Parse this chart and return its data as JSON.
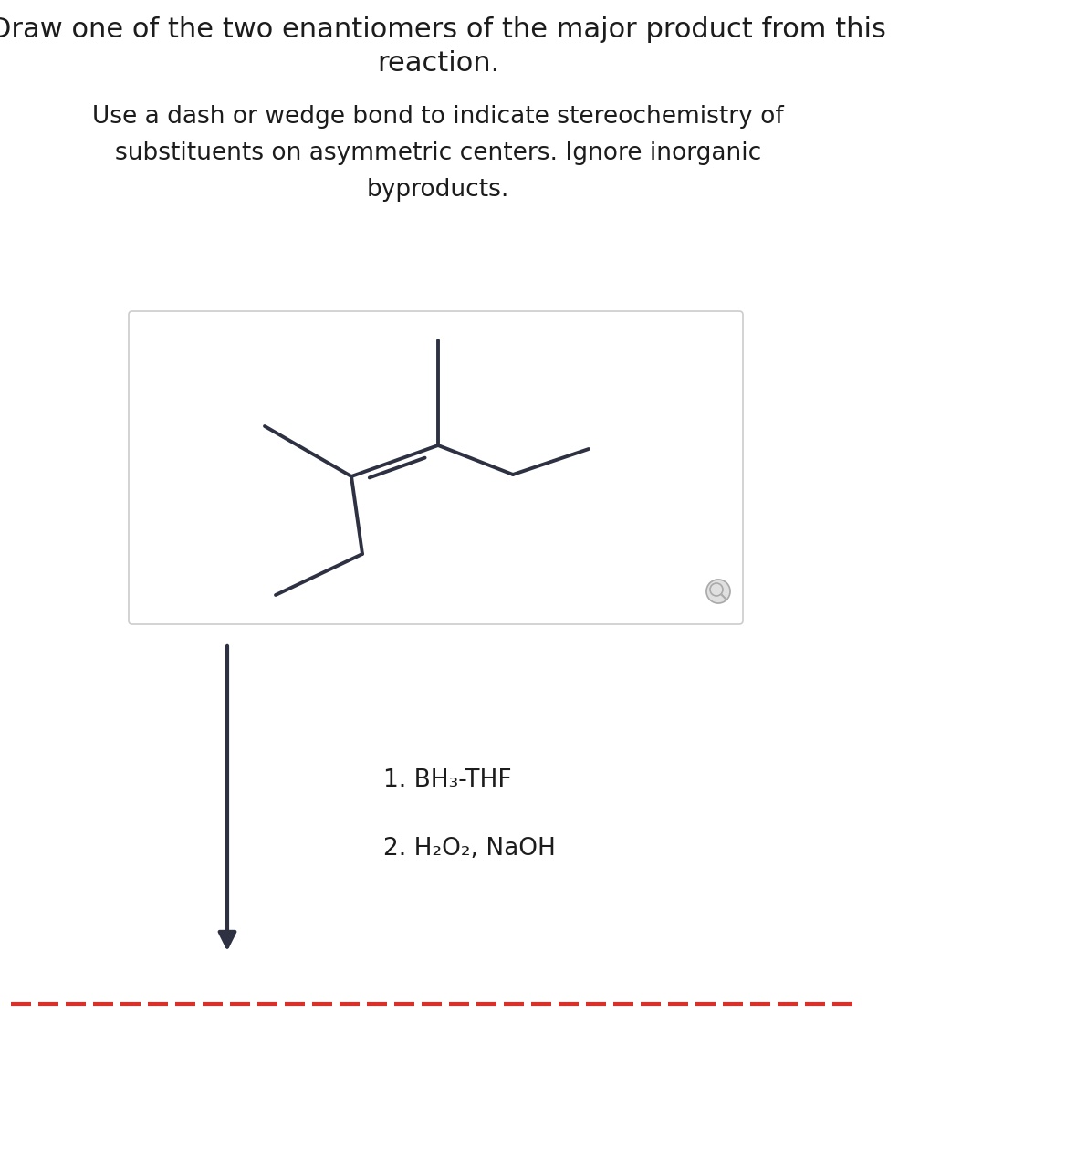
{
  "title_line1": "Draw one of the two enantiomers of the major product from this",
  "title_line2": "reaction.",
  "subtitle_line1": "Use a dash or wedge bond to indicate stereochemistry of",
  "subtitle_line2": "substituents on asymmetric centers. Ignore inorganic",
  "subtitle_line3": "byproducts.",
  "reagent1": "1. BH₃-THF",
  "reagent2": "2. H₂O₂, NaOH",
  "bg_color": "#ffffff",
  "text_color": "#1c1c1c",
  "bond_color": "#2d3142",
  "box_edge_color": "#cccccc",
  "arrow_color": "#2d3142",
  "dash_color": "#d9302a",
  "title_fontsize": 22,
  "subtitle_fontsize": 19,
  "reagent_fontsize": 19,
  "bond_lw": 2.8,
  "mol_c2x": 0.355,
  "mol_c2y": 0.535,
  "mol_c3x": 0.465,
  "mol_c3y": 0.565,
  "mol_scale": 0.1
}
